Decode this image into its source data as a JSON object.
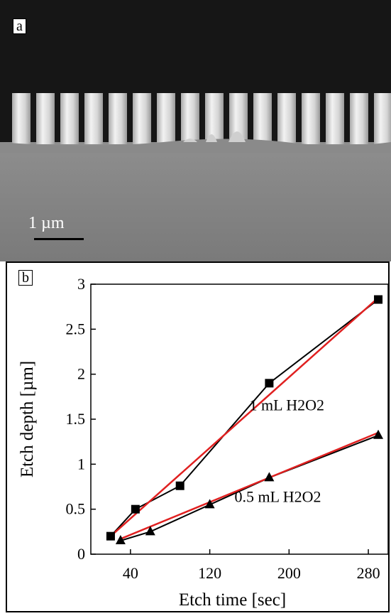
{
  "panels": {
    "a": {
      "label": "a",
      "scale_bar": "1 µm"
    },
    "b": {
      "label": "b"
    }
  },
  "chart_data": {
    "type": "line",
    "title": "",
    "xlabel": "Etch time [sec]",
    "ylabel": "Etch depth [µm]",
    "xlim": [
      0,
      300
    ],
    "ylim": [
      0,
      3
    ],
    "x_ticks": [
      40,
      120,
      200,
      280
    ],
    "y_ticks": [
      0,
      0.5,
      1,
      1.5,
      2,
      2.5,
      3
    ],
    "y_tick_labels": [
      "0",
      "0.5",
      "1",
      "1.5",
      "2",
      "2.5",
      "3"
    ],
    "grid": false,
    "series": [
      {
        "name": "1 mL H2O2",
        "marker": "square",
        "color": "#000000",
        "x": [
          20,
          45,
          90,
          180,
          290
        ],
        "y": [
          0.2,
          0.5,
          0.76,
          1.9,
          2.83
        ],
        "fit": {
          "x": [
            20,
            290
          ],
          "y": [
            0.2,
            2.85
          ],
          "color": "#e02020"
        }
      },
      {
        "name": "0.5 mL H2O2",
        "marker": "triangle",
        "color": "#000000",
        "x": [
          30,
          60,
          120,
          180,
          290
        ],
        "y": [
          0.15,
          0.25,
          0.55,
          0.85,
          1.32
        ],
        "fit": {
          "x": [
            30,
            290
          ],
          "y": [
            0.17,
            1.35
          ],
          "color": "#e02020"
        }
      }
    ]
  }
}
